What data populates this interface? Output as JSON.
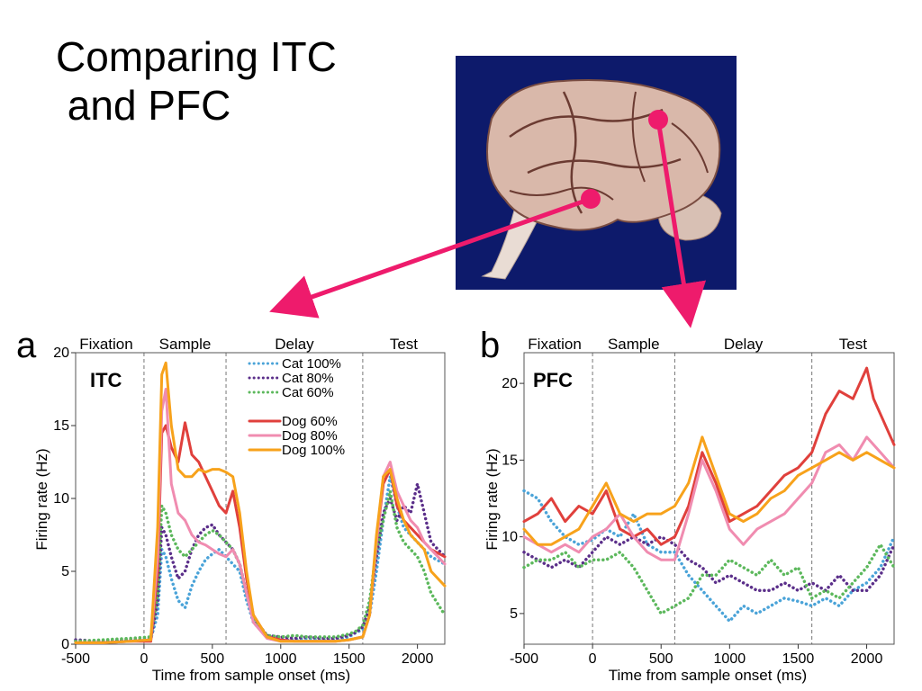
{
  "slide": {
    "title_line1": "Comparing ITC",
    "title_line2": " and PFC"
  },
  "colors": {
    "arrow": "#ee1b6c",
    "brain_background": "#0d1a6b",
    "cat100": "#4aa3d8",
    "cat80": "#5b2f8a",
    "cat60": "#5cb85c",
    "dog60": "#e0403c",
    "dog80": "#f08cb0",
    "dog100": "#f7a21b"
  },
  "chart_data": [
    {
      "type": "line",
      "panel_label": "a",
      "inset_label": "ITC",
      "epochs": [
        "Fixation",
        "Sample",
        "Delay",
        "Test"
      ],
      "epoch_boundaries_ms": [
        0,
        600,
        1600
      ],
      "xlabel": "Time from sample onset (ms)",
      "ylabel": "Firing rate (Hz)",
      "xlim": [
        -500,
        2200
      ],
      "ylim": [
        0,
        20
      ],
      "xticks": [
        -500,
        0,
        500,
        1000,
        1500,
        2000
      ],
      "yticks": [
        0,
        5,
        10,
        15,
        20
      ],
      "legend_position": "top-center",
      "series": [
        {
          "name": "Cat 100%",
          "key": "cat100",
          "style": "dotted",
          "x": [
            -500,
            -300,
            -100,
            50,
            100,
            130,
            160,
            200,
            250,
            300,
            350,
            400,
            450,
            500,
            550,
            600,
            650,
            700,
            750,
            800,
            900,
            1000,
            1100,
            1200,
            1300,
            1400,
            1500,
            1550,
            1600,
            1650,
            1700,
            1750,
            1800,
            1850,
            1900,
            1950,
            2000,
            2050,
            2100,
            2200
          ],
          "y": [
            0.2,
            0.2,
            0.3,
            0.4,
            2.0,
            6.5,
            6.0,
            4.5,
            3.0,
            2.5,
            4.0,
            5.0,
            5.8,
            6.2,
            6.5,
            6.0,
            5.5,
            5.0,
            3.0,
            1.5,
            0.5,
            0.3,
            0.3,
            0.4,
            0.3,
            0.3,
            0.5,
            0.8,
            1.0,
            2.0,
            5.0,
            8.5,
            11.5,
            9.5,
            8.0,
            7.5,
            7.0,
            6.5,
            6.0,
            5.5
          ]
        },
        {
          "name": "Cat 80%",
          "key": "cat80",
          "style": "dotted",
          "x": [
            -500,
            -300,
            -100,
            50,
            100,
            130,
            160,
            200,
            250,
            300,
            350,
            400,
            450,
            500,
            550,
            600,
            650,
            700,
            750,
            800,
            900,
            1000,
            1100,
            1200,
            1300,
            1400,
            1500,
            1550,
            1600,
            1650,
            1700,
            1750,
            1800,
            1850,
            1900,
            1950,
            2000,
            2050,
            2100,
            2200
          ],
          "y": [
            0.3,
            0.2,
            0.3,
            0.3,
            3.0,
            8.0,
            7.5,
            6.0,
            4.5,
            5.0,
            6.5,
            7.5,
            8.0,
            8.2,
            7.5,
            7.0,
            6.5,
            5.5,
            3.5,
            1.8,
            0.6,
            0.5,
            0.4,
            0.5,
            0.4,
            0.4,
            0.6,
            0.8,
            1.2,
            2.5,
            6.0,
            9.0,
            10.0,
            8.5,
            9.5,
            9.0,
            11.0,
            9.0,
            7.0,
            6.0
          ]
        },
        {
          "name": "Cat 60%",
          "key": "cat60",
          "style": "dotted",
          "x": [
            -500,
            -300,
            -100,
            50,
            100,
            130,
            160,
            200,
            250,
            300,
            350,
            400,
            450,
            500,
            550,
            600,
            650,
            700,
            750,
            800,
            900,
            1000,
            1100,
            1200,
            1300,
            1400,
            1500,
            1550,
            1600,
            1650,
            1700,
            1750,
            1800,
            1850,
            1900,
            1950,
            2000,
            2050,
            2100,
            2200
          ],
          "y": [
            0.2,
            0.3,
            0.4,
            0.5,
            3.5,
            9.5,
            9.0,
            7.5,
            6.5,
            6.0,
            6.5,
            7.0,
            7.5,
            7.8,
            7.5,
            7.0,
            6.5,
            5.5,
            3.5,
            1.8,
            0.6,
            0.5,
            0.6,
            0.5,
            0.5,
            0.5,
            0.7,
            0.9,
            1.3,
            3.0,
            6.5,
            8.5,
            10.5,
            8.0,
            7.0,
            6.5,
            6.0,
            5.0,
            3.5,
            2.0
          ]
        },
        {
          "name": "Dog 60%",
          "key": "dog60",
          "style": "solid",
          "x": [
            -500,
            -300,
            -100,
            50,
            100,
            130,
            160,
            200,
            250,
            300,
            350,
            400,
            450,
            500,
            550,
            600,
            650,
            700,
            750,
            800,
            900,
            1000,
            1100,
            1200,
            1300,
            1400,
            1500,
            1550,
            1600,
            1650,
            1700,
            1750,
            1800,
            1850,
            1900,
            1950,
            2000,
            2050,
            2100,
            2200
          ],
          "y": [
            0.1,
            0.1,
            0.2,
            0.2,
            5.0,
            14.5,
            15.0,
            13.5,
            12.5,
            15.2,
            13.0,
            12.5,
            11.5,
            10.5,
            9.5,
            9.0,
            10.5,
            8.0,
            4.5,
            2.0,
            0.5,
            0.3,
            0.2,
            0.2,
            0.2,
            0.2,
            0.3,
            0.4,
            0.5,
            2.0,
            7.0,
            11.0,
            12.0,
            9.5,
            8.5,
            8.0,
            7.5,
            7.0,
            6.5,
            6.0
          ]
        },
        {
          "name": "Dog 80%",
          "key": "dog80",
          "style": "solid",
          "x": [
            -500,
            -300,
            -100,
            50,
            100,
            130,
            160,
            200,
            250,
            300,
            350,
            400,
            450,
            500,
            550,
            600,
            650,
            700,
            750,
            800,
            900,
            1000,
            1100,
            1200,
            1300,
            1400,
            1500,
            1550,
            1600,
            1650,
            1700,
            1750,
            1800,
            1850,
            1900,
            1950,
            2000,
            2050,
            2100,
            2200
          ],
          "y": [
            0.1,
            0.1,
            0.2,
            0.3,
            6.0,
            16.0,
            17.5,
            11.0,
            9.0,
            8.5,
            7.5,
            7.0,
            6.8,
            6.5,
            6.2,
            6.0,
            6.5,
            5.5,
            3.5,
            1.5,
            0.4,
            0.2,
            0.2,
            0.2,
            0.2,
            0.2,
            0.3,
            0.4,
            0.5,
            2.0,
            7.0,
            11.5,
            12.5,
            10.5,
            9.5,
            8.5,
            8.0,
            7.0,
            6.5,
            5.5
          ]
        },
        {
          "name": "Dog 100%",
          "key": "dog100",
          "style": "solid",
          "x": [
            -500,
            -300,
            -100,
            50,
            100,
            130,
            160,
            200,
            250,
            300,
            350,
            400,
            450,
            500,
            550,
            600,
            650,
            700,
            750,
            800,
            900,
            1000,
            1100,
            1200,
            1300,
            1400,
            1500,
            1550,
            1600,
            1650,
            1700,
            1750,
            1800,
            1850,
            1900,
            1950,
            2000,
            2050,
            2100,
            2200
          ],
          "y": [
            0.1,
            0.1,
            0.2,
            0.3,
            8.0,
            18.5,
            19.3,
            15.0,
            12.0,
            11.5,
            11.5,
            12.0,
            11.8,
            12.0,
            12.0,
            11.8,
            11.5,
            9.0,
            5.0,
            2.0,
            0.5,
            0.2,
            0.2,
            0.2,
            0.2,
            0.2,
            0.3,
            0.4,
            0.5,
            2.0,
            7.5,
            11.5,
            12.0,
            10.0,
            8.5,
            7.5,
            7.0,
            6.5,
            5.0,
            4.0
          ]
        }
      ]
    },
    {
      "type": "line",
      "panel_label": "b",
      "inset_label": "PFC",
      "epochs": [
        "Fixation",
        "Sample",
        "Delay",
        "Test"
      ],
      "epoch_boundaries_ms": [
        0,
        600,
        1600
      ],
      "xlabel": "Time from sample onset (ms)",
      "ylabel": "Firing rate (Hz)",
      "xlim": [
        -500,
        2200
      ],
      "ylim": [
        3,
        22
      ],
      "xticks": [
        -500,
        0,
        500,
        1000,
        1500,
        2000
      ],
      "yticks": [
        5,
        10,
        15,
        20
      ],
      "series": [
        {
          "key": "cat100",
          "style": "dotted",
          "x": [
            -500,
            -400,
            -300,
            -200,
            -100,
            0,
            100,
            200,
            300,
            400,
            500,
            600,
            700,
            800,
            900,
            1000,
            1100,
            1200,
            1300,
            1400,
            1500,
            1600,
            1700,
            1800,
            1900,
            2000,
            2100,
            2200
          ],
          "y": [
            13.0,
            12.5,
            11.0,
            10.0,
            9.5,
            9.8,
            10.5,
            10.0,
            11.5,
            9.5,
            9.0,
            9.0,
            7.5,
            6.5,
            5.5,
            4.5,
            5.5,
            5.0,
            5.5,
            6.0,
            5.8,
            5.5,
            6.0,
            5.5,
            6.5,
            7.0,
            8.0,
            10.0
          ]
        },
        {
          "key": "cat80",
          "style": "dotted",
          "x": [
            -500,
            -400,
            -300,
            -200,
            -100,
            0,
            100,
            200,
            300,
            400,
            500,
            600,
            700,
            800,
            900,
            1000,
            1100,
            1200,
            1300,
            1400,
            1500,
            1600,
            1700,
            1800,
            1900,
            2000,
            2100,
            2200
          ],
          "y": [
            9.0,
            8.5,
            8.0,
            8.5,
            8.0,
            9.0,
            10.0,
            9.5,
            10.0,
            9.5,
            10.0,
            9.5,
            8.5,
            8.0,
            7.0,
            7.5,
            7.0,
            6.5,
            6.5,
            7.0,
            6.5,
            7.0,
            6.5,
            7.5,
            6.5,
            6.5,
            7.5,
            9.5
          ]
        },
        {
          "key": "cat60",
          "style": "dotted",
          "x": [
            -500,
            -400,
            -300,
            -200,
            -100,
            0,
            100,
            200,
            300,
            400,
            500,
            600,
            700,
            800,
            900,
            1000,
            1100,
            1200,
            1300,
            1400,
            1500,
            1600,
            1700,
            1800,
            1900,
            2000,
            2100,
            2200
          ],
          "y": [
            8.0,
            8.5,
            8.5,
            9.0,
            8.0,
            8.5,
            8.5,
            9.0,
            8.0,
            6.5,
            5.0,
            5.5,
            6.0,
            7.5,
            7.5,
            8.5,
            8.0,
            7.5,
            8.5,
            7.5,
            8.0,
            6.0,
            6.5,
            6.0,
            7.0,
            8.0,
            9.5,
            8.0
          ]
        },
        {
          "key": "dog60",
          "style": "solid",
          "x": [
            -500,
            -400,
            -300,
            -200,
            -100,
            0,
            100,
            200,
            300,
            400,
            500,
            600,
            700,
            800,
            900,
            1000,
            1100,
            1200,
            1300,
            1400,
            1500,
            1600,
            1700,
            1800,
            1900,
            2000,
            2050,
            2100,
            2200
          ],
          "y": [
            11.0,
            11.5,
            12.5,
            11.0,
            12.0,
            11.5,
            13.0,
            10.5,
            10.0,
            10.5,
            9.5,
            10.0,
            12.0,
            15.5,
            13.5,
            11.0,
            11.5,
            12.0,
            13.0,
            14.0,
            14.5,
            15.5,
            18.0,
            19.5,
            19.0,
            21.0,
            19.0,
            18.0,
            16.0
          ]
        },
        {
          "key": "dog80",
          "style": "solid",
          "x": [
            -500,
            -400,
            -300,
            -200,
            -100,
            0,
            100,
            200,
            300,
            400,
            500,
            600,
            700,
            800,
            900,
            1000,
            1100,
            1200,
            1300,
            1400,
            1500,
            1600,
            1700,
            1800,
            1900,
            2000,
            2100,
            2200
          ],
          "y": [
            10.0,
            9.5,
            9.0,
            9.5,
            9.0,
            10.0,
            10.5,
            11.5,
            10.0,
            9.0,
            8.5,
            8.5,
            11.5,
            15.0,
            13.0,
            10.5,
            9.5,
            10.5,
            11.0,
            11.5,
            12.5,
            13.5,
            15.5,
            16.0,
            15.0,
            16.5,
            15.5,
            14.5
          ]
        },
        {
          "key": "dog100",
          "style": "solid",
          "x": [
            -500,
            -400,
            -300,
            -200,
            -100,
            0,
            100,
            200,
            300,
            400,
            500,
            600,
            700,
            800,
            900,
            1000,
            1100,
            1200,
            1300,
            1400,
            1500,
            1600,
            1700,
            1800,
            1900,
            2000,
            2100,
            2200
          ],
          "y": [
            10.5,
            9.5,
            9.5,
            10.0,
            10.5,
            12.0,
            13.5,
            11.5,
            11.0,
            11.5,
            11.5,
            12.0,
            13.5,
            16.5,
            14.0,
            11.5,
            11.0,
            11.5,
            12.5,
            13.0,
            14.0,
            14.5,
            15.0,
            15.5,
            15.0,
            15.5,
            15.0,
            14.5
          ]
        }
      ]
    }
  ]
}
